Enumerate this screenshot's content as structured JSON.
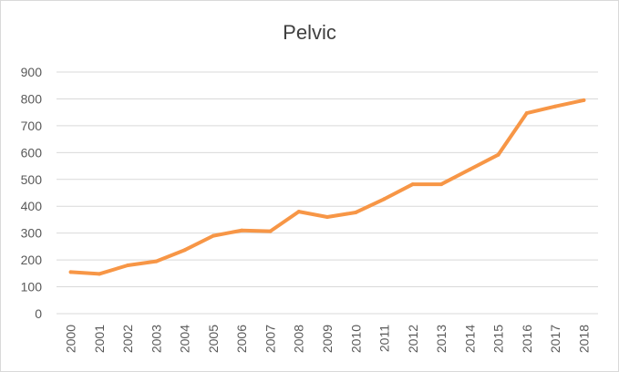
{
  "chart_data": {
    "type": "line",
    "title": "Pelvic",
    "xlabel": "",
    "ylabel": "",
    "ylim": [
      0,
      900
    ],
    "yticks": [
      0,
      100,
      200,
      300,
      400,
      500,
      600,
      700,
      800,
      900
    ],
    "grid": true,
    "legend": "none",
    "categories": [
      "2000",
      "2001",
      "2002",
      "2003",
      "2004",
      "2005",
      "2006",
      "2007",
      "2008",
      "2009",
      "2010",
      "2011",
      "2012",
      "2013",
      "2014",
      "2015",
      "2016",
      "2017",
      "2018"
    ],
    "series": [
      {
        "color": "#f79646",
        "values": [
          155,
          148,
          180,
          195,
          237,
          290,
          310,
          307,
          380,
          360,
          377,
          427,
          482,
          482,
          537,
          592,
          747,
          772,
          795
        ]
      }
    ]
  }
}
